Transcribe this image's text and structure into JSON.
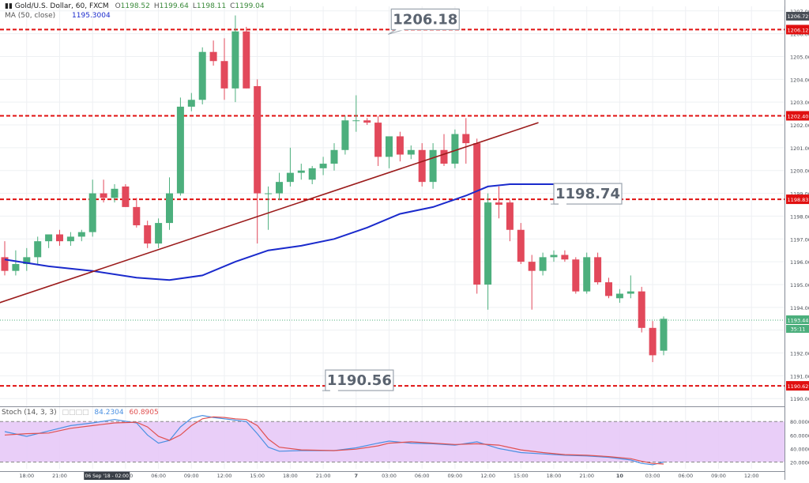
{
  "header": {
    "symbol_line": "Gold/U.S. Dollar, 60, FXCM",
    "ohlc": [
      {
        "k": "O",
        "v": "1198.52"
      },
      {
        "k": "H",
        "v": "1199.64"
      },
      {
        "k": "L",
        "v": "1198.11"
      },
      {
        "k": "C",
        "v": "1199.04"
      }
    ],
    "ma_label": "MA (50, close)",
    "ma_value": "1195.3004",
    "stoch_label": "Stoch (14, 3, 3)",
    "stoch_k": "84.2304",
    "stoch_d": "60.8905"
  },
  "colors": {
    "up": "#4caf7d",
    "down": "#e2495b",
    "ma": "#1a2acc",
    "trendline": "#9b1b1b",
    "level_line": "#e01010",
    "stoch_k": "#4a90e2",
    "stoch_d": "#e05050",
    "stoch_band": "#e7c9f7",
    "current_price": "#4caf7d"
  },
  "chart_data": [
    {
      "type": "candlestick",
      "title": "Gold/U.S. Dollar, 60, FXCM",
      "ylim": [
        1189.8,
        1207.2
      ],
      "y_ticks": [
        "1190.00",
        "1191.00",
        "1192.00",
        "1193.00",
        "1194.00",
        "1195.00",
        "1196.00",
        "1197.00",
        "1198.00",
        "1199.00",
        "1200.00",
        "1201.00",
        "1202.00",
        "1203.00",
        "1204.00",
        "1205.00",
        "1206.00",
        "1207.00"
      ],
      "x_ticks": [
        "18:00",
        "21:00",
        "6",
        "03:00",
        "06:00",
        "09:00",
        "12:00",
        "15:00",
        "18:00",
        "21:00",
        "7",
        "03:00",
        "06:00",
        "09:00",
        "12:00",
        "15:00",
        "18:00",
        "21:00",
        "10",
        "03:00",
        "06:00",
        "09:00",
        "12:00",
        "15:00"
      ],
      "x_tick_bars": [
        2,
        5,
        8,
        11,
        14,
        17,
        20,
        23,
        26,
        29,
        32,
        35,
        38,
        41,
        44,
        47,
        50,
        53,
        56,
        59,
        62,
        65,
        68,
        71
      ],
      "crosshair_label": "06 Sep '18 - 02:00",
      "candles": [
        {
          "o": 1196.2,
          "h": 1196.9,
          "l": 1195.4,
          "c": 1195.6
        },
        {
          "o": 1195.6,
          "h": 1196.5,
          "l": 1195.4,
          "c": 1195.9
        },
        {
          "o": 1195.9,
          "h": 1196.6,
          "l": 1195.6,
          "c": 1196.2
        },
        {
          "o": 1196.2,
          "h": 1197.1,
          "l": 1195.9,
          "c": 1196.9
        },
        {
          "o": 1196.9,
          "h": 1197.2,
          "l": 1196.6,
          "c": 1197.2
        },
        {
          "o": 1197.2,
          "h": 1197.4,
          "l": 1196.7,
          "c": 1196.9
        },
        {
          "o": 1196.9,
          "h": 1197.3,
          "l": 1196.7,
          "c": 1197.1
        },
        {
          "o": 1197.1,
          "h": 1197.4,
          "l": 1196.9,
          "c": 1197.3
        },
        {
          "o": 1197.3,
          "h": 1199.6,
          "l": 1197.1,
          "c": 1199.0
        },
        {
          "o": 1199.0,
          "h": 1199.6,
          "l": 1198.6,
          "c": 1198.8
        },
        {
          "o": 1198.8,
          "h": 1199.4,
          "l": 1198.6,
          "c": 1199.2
        },
        {
          "o": 1199.3,
          "h": 1199.4,
          "l": 1198.4,
          "c": 1198.4
        },
        {
          "o": 1198.4,
          "h": 1198.8,
          "l": 1197.5,
          "c": 1197.6
        },
        {
          "o": 1197.6,
          "h": 1197.8,
          "l": 1196.6,
          "c": 1196.8
        },
        {
          "o": 1196.8,
          "h": 1197.9,
          "l": 1196.6,
          "c": 1197.7
        },
        {
          "o": 1197.7,
          "h": 1199.7,
          "l": 1197.4,
          "c": 1199.0
        },
        {
          "o": 1199.0,
          "h": 1203.2,
          "l": 1198.9,
          "c": 1202.8
        },
        {
          "o": 1202.8,
          "h": 1203.4,
          "l": 1202.6,
          "c": 1203.1
        },
        {
          "o": 1203.1,
          "h": 1205.4,
          "l": 1202.9,
          "c": 1205.2
        },
        {
          "o": 1205.2,
          "h": 1205.7,
          "l": 1204.6,
          "c": 1204.8
        },
        {
          "o": 1204.8,
          "h": 1205.8,
          "l": 1203.1,
          "c": 1203.6
        },
        {
          "o": 1203.6,
          "h": 1206.8,
          "l": 1203.0,
          "c": 1206.1
        },
        {
          "o": 1206.1,
          "h": 1206.3,
          "l": 1203.6,
          "c": 1203.6
        },
        {
          "o": 1203.7,
          "h": 1204.0,
          "l": 1196.8,
          "c": 1199.0
        },
        {
          "o": 1199.0,
          "h": 1199.3,
          "l": 1197.4,
          "c": 1199.0
        },
        {
          "o": 1199.0,
          "h": 1199.9,
          "l": 1198.7,
          "c": 1199.5
        },
        {
          "o": 1199.5,
          "h": 1201.0,
          "l": 1199.3,
          "c": 1199.9
        },
        {
          "o": 1199.9,
          "h": 1200.3,
          "l": 1199.6,
          "c": 1200.0
        },
        {
          "o": 1199.6,
          "h": 1200.2,
          "l": 1199.4,
          "c": 1200.1
        },
        {
          "o": 1200.1,
          "h": 1200.6,
          "l": 1199.8,
          "c": 1200.3
        },
        {
          "o": 1200.3,
          "h": 1201.2,
          "l": 1200.0,
          "c": 1200.9
        },
        {
          "o": 1200.9,
          "h": 1202.4,
          "l": 1200.7,
          "c": 1202.2
        },
        {
          "o": 1202.2,
          "h": 1203.3,
          "l": 1201.7,
          "c": 1202.2
        },
        {
          "o": 1202.2,
          "h": 1202.3,
          "l": 1202.0,
          "c": 1202.1
        },
        {
          "o": 1202.1,
          "h": 1202.4,
          "l": 1200.2,
          "c": 1200.6
        },
        {
          "o": 1200.6,
          "h": 1201.5,
          "l": 1200.1,
          "c": 1201.5
        },
        {
          "o": 1201.5,
          "h": 1201.7,
          "l": 1200.4,
          "c": 1200.7
        },
        {
          "o": 1200.7,
          "h": 1201.1,
          "l": 1200.5,
          "c": 1200.9
        },
        {
          "o": 1200.9,
          "h": 1201.2,
          "l": 1199.3,
          "c": 1199.5
        },
        {
          "o": 1199.5,
          "h": 1201.2,
          "l": 1199.2,
          "c": 1200.9
        },
        {
          "o": 1200.9,
          "h": 1201.6,
          "l": 1200.2,
          "c": 1200.3
        },
        {
          "o": 1200.3,
          "h": 1201.8,
          "l": 1200.1,
          "c": 1201.6
        },
        {
          "o": 1201.6,
          "h": 1202.3,
          "l": 1200.3,
          "c": 1201.2
        },
        {
          "o": 1201.2,
          "h": 1201.4,
          "l": 1194.6,
          "c": 1195.0
        },
        {
          "o": 1195.0,
          "h": 1199.0,
          "l": 1193.9,
          "c": 1198.6
        },
        {
          "o": 1198.6,
          "h": 1199.3,
          "l": 1197.9,
          "c": 1198.5
        },
        {
          "o": 1198.6,
          "h": 1198.7,
          "l": 1196.9,
          "c": 1197.4
        },
        {
          "o": 1197.4,
          "h": 1197.7,
          "l": 1195.9,
          "c": 1196.0
        },
        {
          "o": 1196.0,
          "h": 1196.3,
          "l": 1193.9,
          "c": 1195.6
        },
        {
          "o": 1195.6,
          "h": 1196.4,
          "l": 1195.4,
          "c": 1196.2
        },
        {
          "o": 1196.2,
          "h": 1196.5,
          "l": 1196.0,
          "c": 1196.3
        },
        {
          "o": 1196.3,
          "h": 1196.5,
          "l": 1196.0,
          "c": 1196.1
        },
        {
          "o": 1196.1,
          "h": 1196.2,
          "l": 1194.6,
          "c": 1194.7
        },
        {
          "o": 1194.7,
          "h": 1196.4,
          "l": 1194.6,
          "c": 1196.2
        },
        {
          "o": 1196.2,
          "h": 1196.4,
          "l": 1195.0,
          "c": 1195.1
        },
        {
          "o": 1195.1,
          "h": 1195.3,
          "l": 1194.4,
          "c": 1194.5
        },
        {
          "o": 1194.4,
          "h": 1194.8,
          "l": 1194.2,
          "c": 1194.6
        },
        {
          "o": 1194.6,
          "h": 1195.4,
          "l": 1194.4,
          "c": 1194.7
        },
        {
          "o": 1194.7,
          "h": 1194.9,
          "l": 1192.9,
          "c": 1193.1
        },
        {
          "o": 1193.1,
          "h": 1193.4,
          "l": 1191.6,
          "c": 1191.9
        },
        {
          "o": 1192.1,
          "h": 1193.6,
          "l": 1191.9,
          "c": 1193.5
        }
      ],
      "moving_average": {
        "name": "MA (50, close)",
        "points": [
          {
            "bar": 0,
            "y": 1196.1
          },
          {
            "bar": 4,
            "y": 1195.8
          },
          {
            "bar": 8,
            "y": 1195.6
          },
          {
            "bar": 12,
            "y": 1195.3
          },
          {
            "bar": 15,
            "y": 1195.2
          },
          {
            "bar": 18,
            "y": 1195.4
          },
          {
            "bar": 21,
            "y": 1196.0
          },
          {
            "bar": 24,
            "y": 1196.5
          },
          {
            "bar": 27,
            "y": 1196.7
          },
          {
            "bar": 30,
            "y": 1197.0
          },
          {
            "bar": 33,
            "y": 1197.5
          },
          {
            "bar": 36,
            "y": 1198.1
          },
          {
            "bar": 39,
            "y": 1198.4
          },
          {
            "bar": 42,
            "y": 1198.9
          },
          {
            "bar": 44,
            "y": 1199.3
          },
          {
            "bar": 46,
            "y": 1199.4
          },
          {
            "bar": 48,
            "y": 1199.4
          },
          {
            "bar": 50,
            "y": 1199.4
          },
          {
            "bar": 53,
            "y": 1199.4
          },
          {
            "bar": 55,
            "y": 1199.3
          },
          {
            "bar": 56,
            "y": 1199.0
          }
        ]
      },
      "trendline": {
        "from": {
          "bar": -0.5,
          "y": 1194.2
        },
        "to": {
          "bar": 48.6,
          "y": 1202.1
        }
      },
      "levels": [
        {
          "value": 1206.18,
          "callout": "1206.18",
          "axis_label": "1206.12",
          "callout_bar": 35.2,
          "callout_dy": -26
        },
        {
          "value": 1202.4,
          "axis_label": "1202.40"
        },
        {
          "value": 1198.74,
          "callout": "1198.74",
          "axis_label": "1198.83",
          "callout_bar": 50,
          "callout_dy": -20
        },
        {
          "value": 1190.56,
          "callout": "1190.56",
          "axis_label": "1190.62",
          "callout_bar": 29.2,
          "callout_dy": -20
        }
      ],
      "current_price": {
        "value": 1193.44,
        "axis_label": "1193.44",
        "countdown": "35:11"
      },
      "top_right_price": "1206.72"
    },
    {
      "type": "line",
      "title": "Stoch (14, 3, 3)",
      "ylim": [
        10,
        92
      ],
      "y_ticks": [
        "20.0000",
        "40.0000",
        "60.0000",
        "80.0000"
      ],
      "band": [
        20,
        80
      ],
      "series": [
        {
          "name": "%K",
          "points": [
            {
              "bar": 0,
              "y": 65
            },
            {
              "bar": 2,
              "y": 58
            },
            {
              "bar": 4,
              "y": 66
            },
            {
              "bar": 6,
              "y": 74
            },
            {
              "bar": 8,
              "y": 78
            },
            {
              "bar": 10,
              "y": 83
            },
            {
              "bar": 12,
              "y": 78
            },
            {
              "bar": 13,
              "y": 60
            },
            {
              "bar": 14,
              "y": 48
            },
            {
              "bar": 15,
              "y": 52
            },
            {
              "bar": 16,
              "y": 72
            },
            {
              "bar": 17,
              "y": 85
            },
            {
              "bar": 18,
              "y": 89
            },
            {
              "bar": 19,
              "y": 86
            },
            {
              "bar": 20,
              "y": 84
            },
            {
              "bar": 21,
              "y": 82
            },
            {
              "bar": 22,
              "y": 80
            },
            {
              "bar": 23,
              "y": 62
            },
            {
              "bar": 24,
              "y": 42
            },
            {
              "bar": 25,
              "y": 36
            },
            {
              "bar": 27,
              "y": 37
            },
            {
              "bar": 30,
              "y": 37
            },
            {
              "bar": 32,
              "y": 41
            },
            {
              "bar": 34,
              "y": 48
            },
            {
              "bar": 35,
              "y": 51
            },
            {
              "bar": 37,
              "y": 48
            },
            {
              "bar": 39,
              "y": 47
            },
            {
              "bar": 41,
              "y": 45
            },
            {
              "bar": 43,
              "y": 50
            },
            {
              "bar": 45,
              "y": 40
            },
            {
              "bar": 47,
              "y": 34
            },
            {
              "bar": 49,
              "y": 32
            },
            {
              "bar": 51,
              "y": 30
            },
            {
              "bar": 53,
              "y": 29
            },
            {
              "bar": 55,
              "y": 27
            },
            {
              "bar": 57,
              "y": 23
            },
            {
              "bar": 58,
              "y": 18
            },
            {
              "bar": 59,
              "y": 16
            },
            {
              "bar": 60,
              "y": 20
            }
          ]
        },
        {
          "name": "%D",
          "points": [
            {
              "bar": 0,
              "y": 60
            },
            {
              "bar": 2,
              "y": 62
            },
            {
              "bar": 4,
              "y": 63
            },
            {
              "bar": 6,
              "y": 70
            },
            {
              "bar": 8,
              "y": 74
            },
            {
              "bar": 10,
              "y": 78
            },
            {
              "bar": 12,
              "y": 79
            },
            {
              "bar": 13,
              "y": 72
            },
            {
              "bar": 14,
              "y": 58
            },
            {
              "bar": 15,
              "y": 52
            },
            {
              "bar": 16,
              "y": 60
            },
            {
              "bar": 17,
              "y": 74
            },
            {
              "bar": 18,
              "y": 84
            },
            {
              "bar": 19,
              "y": 87
            },
            {
              "bar": 20,
              "y": 86
            },
            {
              "bar": 21,
              "y": 84
            },
            {
              "bar": 22,
              "y": 83
            },
            {
              "bar": 23,
              "y": 74
            },
            {
              "bar": 24,
              "y": 54
            },
            {
              "bar": 25,
              "y": 42
            },
            {
              "bar": 27,
              "y": 38
            },
            {
              "bar": 30,
              "y": 37
            },
            {
              "bar": 32,
              "y": 39
            },
            {
              "bar": 34,
              "y": 44
            },
            {
              "bar": 35,
              "y": 48
            },
            {
              "bar": 37,
              "y": 50
            },
            {
              "bar": 39,
              "y": 48
            },
            {
              "bar": 41,
              "y": 46
            },
            {
              "bar": 43,
              "y": 47
            },
            {
              "bar": 45,
              "y": 45
            },
            {
              "bar": 47,
              "y": 38
            },
            {
              "bar": 49,
              "y": 34
            },
            {
              "bar": 51,
              "y": 31
            },
            {
              "bar": 53,
              "y": 30
            },
            {
              "bar": 55,
              "y": 28
            },
            {
              "bar": 57,
              "y": 25
            },
            {
              "bar": 58,
              "y": 21
            },
            {
              "bar": 59,
              "y": 18
            },
            {
              "bar": 60,
              "y": 17
            }
          ]
        }
      ]
    }
  ]
}
